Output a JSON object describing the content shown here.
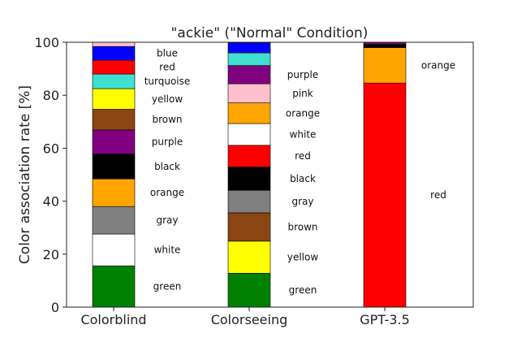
{
  "chart_data": {
    "type": "bar",
    "stacked": true,
    "title": "\"ackie\" (\"Normal\" Condition)",
    "xlabel": "",
    "ylabel": "Color association rate [%]",
    "ylim": [
      0,
      100
    ],
    "yticks": [
      0,
      20,
      40,
      60,
      80,
      100
    ],
    "grid": false,
    "legend": "none",
    "categories": [
      "Colorblind",
      "Colorseeing",
      "GPT-3.5"
    ],
    "stacks": [
      {
        "category": "Colorblind",
        "segments": [
          {
            "label": "green",
            "value": 15.6,
            "color": "#008000"
          },
          {
            "label": "white",
            "value": 12.0,
            "color": "#ffffff"
          },
          {
            "label": "gray",
            "value": 10.4,
            "color": "#808080"
          },
          {
            "label": "orange",
            "value": 10.4,
            "color": "#ffa500"
          },
          {
            "label": "black",
            "value": 9.4,
            "color": "#000000"
          },
          {
            "label": "purple",
            "value": 9.1,
            "color": "#800080"
          },
          {
            "label": "brown",
            "value": 7.8,
            "color": "#8b4513"
          },
          {
            "label": "yellow",
            "value": 7.8,
            "color": "#ffff00"
          },
          {
            "label": "turquoise",
            "value": 5.5,
            "color": "#40e0d0"
          },
          {
            "label": "red",
            "value": 5.2,
            "color": "#ff0000"
          },
          {
            "label": "blue",
            "value": 5.2,
            "color": "#0000ff"
          },
          {
            "label": "",
            "value": 1.6,
            "color": "#ffc0cb"
          }
        ]
      },
      {
        "category": "Colorseeing",
        "segments": [
          {
            "label": "green",
            "value": 12.8,
            "color": "#008000"
          },
          {
            "label": "yellow",
            "value": 12.1,
            "color": "#ffff00"
          },
          {
            "label": "brown",
            "value": 10.7,
            "color": "#8b4513"
          },
          {
            "label": "gray",
            "value": 8.5,
            "color": "#808080"
          },
          {
            "label": "black",
            "value": 8.8,
            "color": "#000000"
          },
          {
            "label": "red",
            "value": 8.2,
            "color": "#ff0000"
          },
          {
            "label": "white",
            "value": 8.2,
            "color": "#ffffff"
          },
          {
            "label": "orange",
            "value": 7.8,
            "color": "#ffa500"
          },
          {
            "label": "pink",
            "value": 7.2,
            "color": "#ffc0cb"
          },
          {
            "label": "purple",
            "value": 6.9,
            "color": "#800080"
          },
          {
            "label": "",
            "value": 4.8,
            "color": "#40e0d0"
          },
          {
            "label": "",
            "value": 3.8,
            "color": "#0000ff"
          }
        ]
      },
      {
        "category": "GPT-3.5",
        "segments": [
          {
            "label": "red",
            "value": 84.6,
            "color": "#ff0000"
          },
          {
            "label": "orange",
            "value": 13.4,
            "color": "#ffa500"
          },
          {
            "label": "",
            "value": 1.2,
            "color": "#000000"
          },
          {
            "label": "",
            "value": 0.8,
            "color": "#800080"
          }
        ]
      }
    ]
  }
}
